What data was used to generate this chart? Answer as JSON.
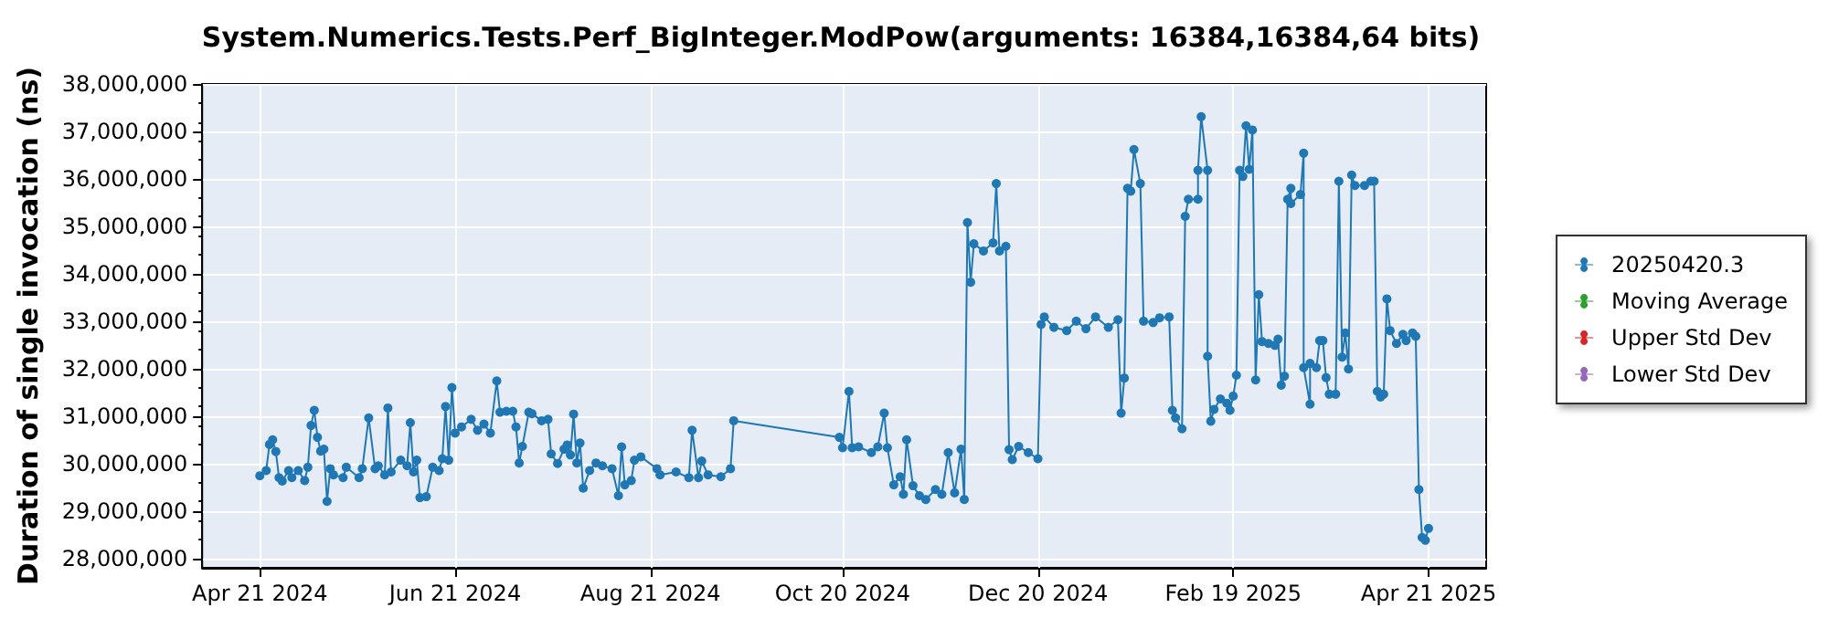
{
  "chart_data": {
    "type": "line",
    "title": "System.Numerics.Tests.Perf_BigInteger.ModPow(arguments: 16384,16384,64 bits)",
    "ylabel": "Duration of single invocation (ns)",
    "xlim": [
      "2024-04-03",
      "2025-05-09"
    ],
    "xticks": [
      {
        "value": "2024-04-21",
        "label": "Apr 21 2024"
      },
      {
        "value": "2024-06-21",
        "label": "Jun 21 2024"
      },
      {
        "value": "2024-08-21",
        "label": "Aug 21 2024"
      },
      {
        "value": "2024-10-20",
        "label": "Oct 20 2024"
      },
      {
        "value": "2024-12-20",
        "label": "Dec 20 2024"
      },
      {
        "value": "2025-02-19",
        "label": "Feb 19 2025"
      },
      {
        "value": "2025-04-21",
        "label": "Apr 21 2025"
      }
    ],
    "ylim": [
      27800000,
      38000000
    ],
    "yticks": [
      {
        "value": 28000000,
        "label": "28,000,000"
      },
      {
        "value": 29000000,
        "label": "29,000,000"
      },
      {
        "value": 30000000,
        "label": "30,000,000"
      },
      {
        "value": 31000000,
        "label": "31,000,000"
      },
      {
        "value": 32000000,
        "label": "32,000,000"
      },
      {
        "value": 33000000,
        "label": "33,000,000"
      },
      {
        "value": 34000000,
        "label": "34,000,000"
      },
      {
        "value": 35000000,
        "label": "35,000,000"
      },
      {
        "value": 36000000,
        "label": "36,000,000"
      },
      {
        "value": 37000000,
        "label": "37,000,000"
      },
      {
        "value": 38000000,
        "label": "38,000,000"
      }
    ],
    "grid": true,
    "legend": "right",
    "marker": "circle",
    "line_style": "solid",
    "series": [
      {
        "name": "20250420.3",
        "color": "#1f77b4",
        "x": [
          "2024-04-21",
          "2024-04-23",
          "2024-04-24",
          "2024-04-25",
          "2024-04-26",
          "2024-04-27",
          "2024-04-28",
          "2024-04-30",
          "2024-05-01",
          "2024-05-03",
          "2024-05-05",
          "2024-05-06",
          "2024-05-07",
          "2024-05-08",
          "2024-05-09",
          "2024-05-10",
          "2024-05-11",
          "2024-05-12",
          "2024-05-13",
          "2024-05-14",
          "2024-05-17",
          "2024-05-18",
          "2024-05-22",
          "2024-05-23",
          "2024-05-25",
          "2024-05-27",
          "2024-05-28",
          "2024-05-30",
          "2024-05-31",
          "2024-06-01",
          "2024-06-04",
          "2024-06-06",
          "2024-06-07",
          "2024-06-08",
          "2024-06-09",
          "2024-06-10",
          "2024-06-12",
          "2024-06-14",
          "2024-06-16",
          "2024-06-17",
          "2024-06-18",
          "2024-06-19",
          "2024-06-20",
          "2024-06-21",
          "2024-06-23",
          "2024-06-26",
          "2024-06-28",
          "2024-06-30",
          "2024-07-02",
          "2024-07-04",
          "2024-07-05",
          "2024-07-07",
          "2024-07-09",
          "2024-07-10",
          "2024-07-11",
          "2024-07-12",
          "2024-07-14",
          "2024-07-15",
          "2024-07-18",
          "2024-07-20",
          "2024-07-21",
          "2024-07-23",
          "2024-07-25",
          "2024-07-26",
          "2024-07-27",
          "2024-07-28",
          "2024-07-29",
          "2024-07-30",
          "2024-07-31",
          "2024-08-02",
          "2024-08-04",
          "2024-08-06",
          "2024-08-09",
          "2024-08-11",
          "2024-08-12",
          "2024-08-13",
          "2024-08-15",
          "2024-08-16",
          "2024-08-18",
          "2024-08-23",
          "2024-08-24",
          "2024-08-29",
          "2024-09-02",
          "2024-09-03",
          "2024-09-05",
          "2024-09-06",
          "2024-09-08",
          "2024-09-12",
          "2024-09-15",
          "2024-09-16",
          "2024-10-19",
          "2024-10-20",
          "2024-10-22",
          "2024-10-23",
          "2024-10-25",
          "2024-10-29",
          "2024-10-31",
          "2024-11-02",
          "2024-11-03",
          "2024-11-05",
          "2024-11-07",
          "2024-11-08",
          "2024-11-09",
          "2024-11-11",
          "2024-11-13",
          "2024-11-15",
          "2024-11-18",
          "2024-11-20",
          "2024-11-22",
          "2024-11-24",
          "2024-11-26",
          "2024-11-27",
          "2024-11-28",
          "2024-11-29",
          "2024-11-30",
          "2024-12-03",
          "2024-12-06",
          "2024-12-07",
          "2024-12-08",
          "2024-12-10",
          "2024-12-11",
          "2024-12-12",
          "2024-12-14",
          "2024-12-17",
          "2024-12-20",
          "2024-12-21",
          "2024-12-22",
          "2024-12-25",
          "2024-12-29",
          "2025-01-01",
          "2025-01-04",
          "2025-01-07",
          "2025-01-11",
          "2025-01-14",
          "2025-01-15",
          "2025-01-16",
          "2025-01-17",
          "2025-01-18",
          "2025-01-19",
          "2025-01-21",
          "2025-01-22",
          "2025-01-25",
          "2025-01-27",
          "2025-01-30",
          "2025-01-31",
          "2025-02-01",
          "2025-02-03",
          "2025-02-04",
          "2025-02-05",
          "2025-02-08",
          "2025-02-08",
          "2025-02-09",
          "2025-02-11",
          "2025-02-11",
          "2025-02-12",
          "2025-02-13",
          "2025-02-15",
          "2025-02-17",
          "2025-02-18",
          "2025-02-19",
          "2025-02-20",
          "2025-02-21",
          "2025-02-22",
          "2025-02-23",
          "2025-02-24",
          "2025-02-25",
          "2025-02-26",
          "2025-02-27",
          "2025-02-28",
          "2025-03-02",
          "2025-03-04",
          "2025-03-05",
          "2025-03-06",
          "2025-03-07",
          "2025-03-08",
          "2025-03-09",
          "2025-03-09",
          "2025-03-12",
          "2025-03-13",
          "2025-03-13",
          "2025-03-15",
          "2025-03-15",
          "2025-03-17",
          "2025-03-18",
          "2025-03-19",
          "2025-03-20",
          "2025-03-21",
          "2025-03-23",
          "2025-03-24",
          "2025-03-25",
          "2025-03-26",
          "2025-03-27",
          "2025-03-28",
          "2025-03-29",
          "2025-04-01",
          "2025-04-03",
          "2025-04-04",
          "2025-04-05",
          "2025-04-06",
          "2025-04-07",
          "2025-04-08",
          "2025-04-09",
          "2025-04-11",
          "2025-04-13",
          "2025-04-14",
          "2025-04-16",
          "2025-04-17",
          "2025-04-18",
          "2025-04-19",
          "2025-04-20",
          "2025-04-21"
        ],
        "values": [
          29740000,
          29850000,
          30400000,
          30500000,
          30250000,
          29700000,
          29630000,
          29850000,
          29700000,
          29850000,
          29640000,
          29920000,
          30800000,
          31120000,
          30550000,
          30260000,
          30300000,
          29200000,
          29890000,
          29760000,
          29700000,
          29920000,
          29700000,
          29890000,
          30960000,
          29890000,
          29950000,
          29760000,
          31170000,
          29820000,
          30070000,
          29950000,
          30860000,
          29820000,
          30070000,
          29280000,
          29300000,
          29920000,
          29850000,
          30100000,
          31200000,
          30070000,
          31600000,
          30640000,
          30770000,
          30930000,
          30700000,
          30830000,
          30640000,
          31740000,
          31080000,
          31100000,
          31100000,
          30770000,
          30010000,
          30360000,
          31080000,
          31050000,
          30900000,
          30930000,
          30200000,
          30000000,
          30300000,
          30390000,
          30180000,
          31040000,
          30010000,
          30430000,
          29480000,
          29850000,
          30010000,
          29950000,
          29890000,
          29320000,
          30350000,
          29550000,
          29640000,
          30070000,
          30140000,
          29890000,
          29760000,
          29820000,
          29700000,
          30700000,
          29700000,
          30050000,
          29760000,
          29720000,
          29890000,
          30900000,
          30550000,
          30330000,
          31520000,
          30330000,
          30350000,
          30230000,
          30350000,
          31060000,
          30330000,
          29550000,
          29720000,
          29350000,
          30500000,
          29530000,
          29320000,
          29240000,
          29450000,
          29350000,
          30230000,
          29380000,
          30300000,
          29240000,
          35080000,
          33820000,
          34630000,
          34480000,
          34650000,
          35900000,
          34480000,
          34580000,
          30290000,
          30080000,
          30360000,
          30230000,
          30100000,
          32930000,
          33090000,
          32870000,
          32800000,
          33000000,
          32840000,
          33090000,
          32870000,
          33030000,
          31060000,
          31800000,
          35800000,
          35740000,
          36620000,
          35900000,
          33000000,
          32970000,
          33070000,
          33090000,
          31120000,
          30960000,
          30730000,
          35210000,
          35570000,
          35570000,
          36180000,
          37310000,
          36180000,
          32260000,
          30890000,
          31140000,
          31360000,
          31270000,
          31120000,
          31420000,
          31860000,
          36180000,
          36050000,
          37120000,
          36200000,
          37030000,
          31760000,
          33560000,
          32570000,
          32530000,
          32490000,
          32620000,
          31650000,
          31840000,
          35570000,
          35800000,
          35480000,
          35670000,
          36540000,
          32020000,
          31250000,
          32110000,
          32020000,
          32590000,
          32590000,
          31810000,
          31460000,
          31460000,
          35950000,
          32240000,
          32750000,
          31990000,
          36080000,
          35860000,
          35860000,
          35950000,
          35950000,
          31520000,
          31400000,
          31460000,
          33470000,
          32800000,
          32530000,
          32720000,
          32590000,
          32750000,
          32680000,
          29450000,
          28440000,
          28380000,
          28630000
        ]
      },
      {
        "name": "Moving Average",
        "color": "#2ca02c"
      },
      {
        "name": "Upper Std Dev",
        "color": "#d62728"
      },
      {
        "name": "Lower Std Dev",
        "color": "#9467bd"
      }
    ]
  }
}
